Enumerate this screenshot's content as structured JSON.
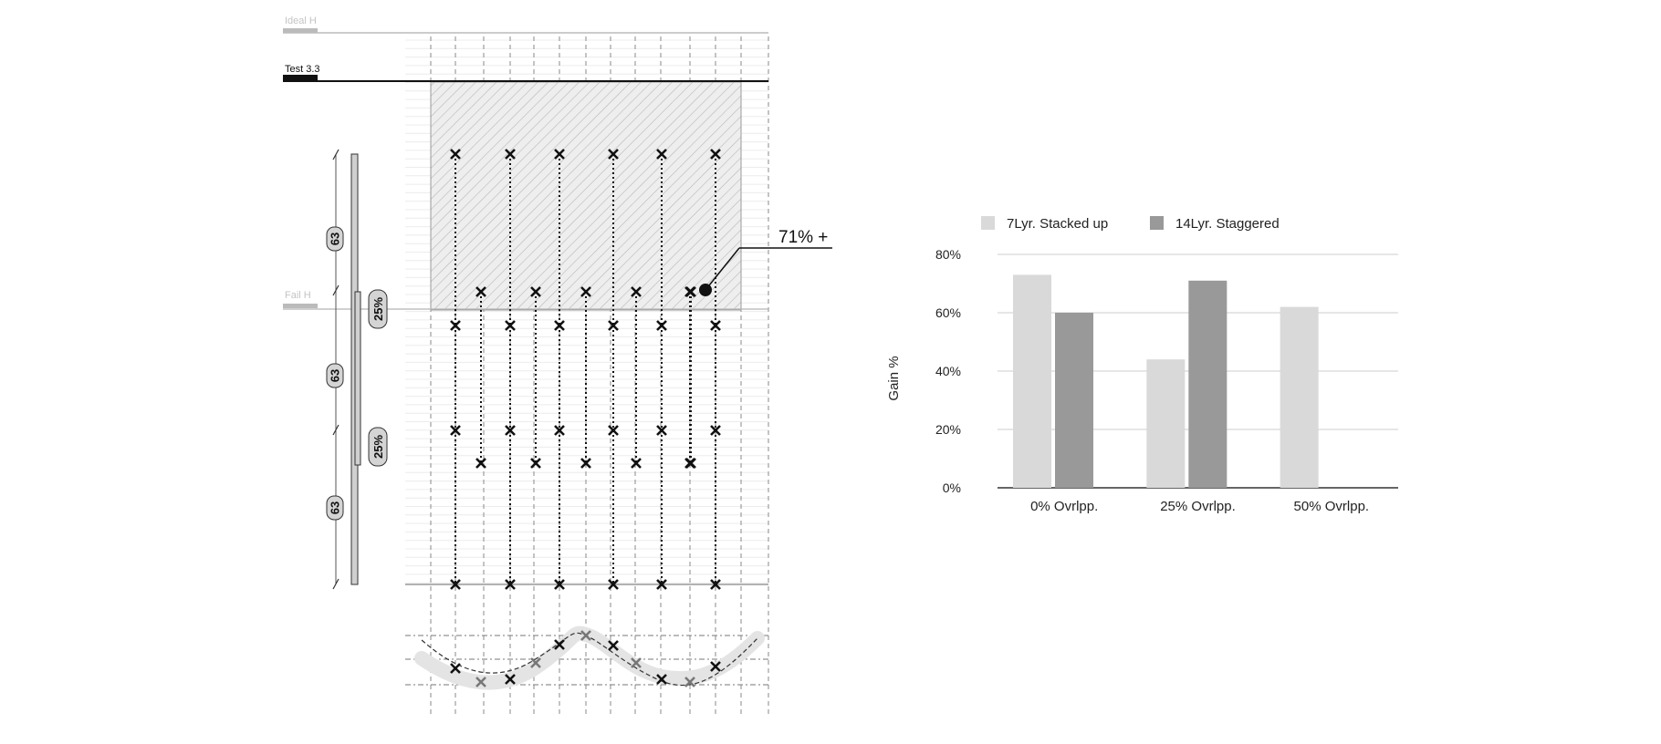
{
  "diagram": {
    "ideal_label": "Ideal H",
    "test_label": "Test 3.3",
    "fail_label": "Fail H",
    "callout": "71% +",
    "brackets": [
      "63",
      "63",
      "63"
    ],
    "overlaps": [
      "25%",
      "25%"
    ]
  },
  "chart_data": {
    "type": "bar",
    "categories": [
      "0% Ovrlpp.",
      "25% Ovrlpp.",
      "50% Ovrlpp."
    ],
    "series": [
      {
        "name": "7Lyr. Stacked up",
        "values": [
          73,
          44,
          62
        ]
      },
      {
        "name": "14Lyr. Staggered",
        "values": [
          60,
          71,
          null
        ]
      }
    ],
    "title": "",
    "xlabel": "",
    "ylabel": "Gain %",
    "ylim": [
      0,
      80
    ],
    "yticks": [
      "0%",
      "20%",
      "40%",
      "60%",
      "80%"
    ],
    "grid": true,
    "legend_position": "top",
    "colors": [
      "#d9d9d9",
      "#999999"
    ]
  }
}
